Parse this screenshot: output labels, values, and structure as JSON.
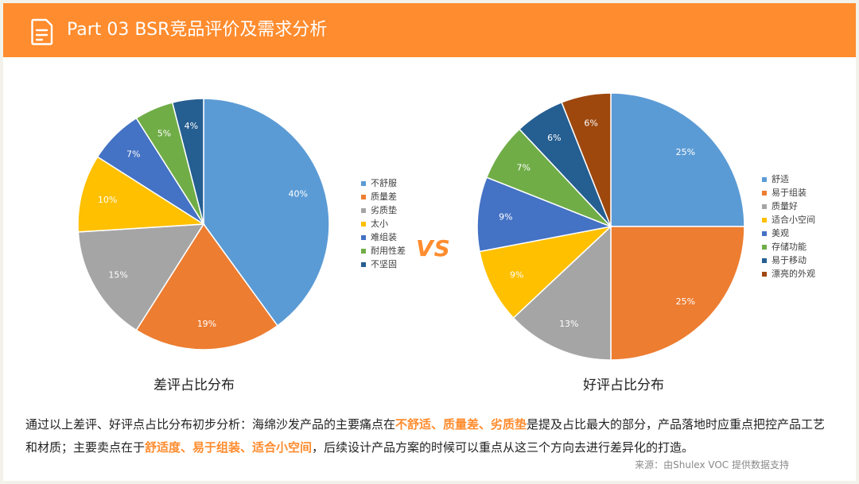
{
  "header": {
    "title": "Part 03  BSR竞品评价及需求分析",
    "icon": "document-icon",
    "color": "#ff8c2e"
  },
  "vs_label": "VS",
  "chart_data": [
    {
      "type": "pie",
      "title": "差评占比分布",
      "legend_position": "right",
      "categories": [
        "不舒服",
        "质量差",
        "劣质垫",
        "太小",
        "难组装",
        "耐用性差",
        "不坚固"
      ],
      "values": [
        40,
        19,
        15,
        10,
        7,
        5,
        4
      ],
      "labels": [
        "40%",
        "19%",
        "15%",
        "10%",
        "7%",
        "5%",
        "4%"
      ],
      "colors": [
        "#5b9bd5",
        "#ed7d31",
        "#a5a5a5",
        "#ffc000",
        "#4472c4",
        "#70ad47",
        "#255e91"
      ]
    },
    {
      "type": "pie",
      "title": "好评占比分布",
      "legend_position": "right",
      "categories": [
        "舒适",
        "易于组装",
        "质量好",
        "适合小空间",
        "美观",
        "存储功能",
        "易于移动",
        "漂亮的外观"
      ],
      "values": [
        25,
        25,
        13,
        9,
        9,
        7,
        6,
        6
      ],
      "labels": [
        "25%",
        "25%",
        "13%",
        "9%",
        "9%",
        "7%",
        "6%",
        "6%"
      ],
      "colors": [
        "#5b9bd5",
        "#ed7d31",
        "#a5a5a5",
        "#ffc000",
        "#4472c4",
        "#70ad47",
        "#255e91",
        "#9e480e"
      ]
    }
  ],
  "summary": {
    "p1": "通过以上差评、好评点占比分布初步分析：海绵沙发产品的主要痛点在",
    "h1": "不舒适、质量差、劣质垫",
    "p2": "是提及占比最大的部分，产品落地时应重点把控产品工艺和材质；主要卖点在于",
    "h2": "舒适度、易于组装、适合小空间",
    "p3": "，后续设计产品方案的时候可以重点从这三个方向去进行差异化的打造。"
  },
  "source": "来源：由Shulex VOC 提供数据支持"
}
